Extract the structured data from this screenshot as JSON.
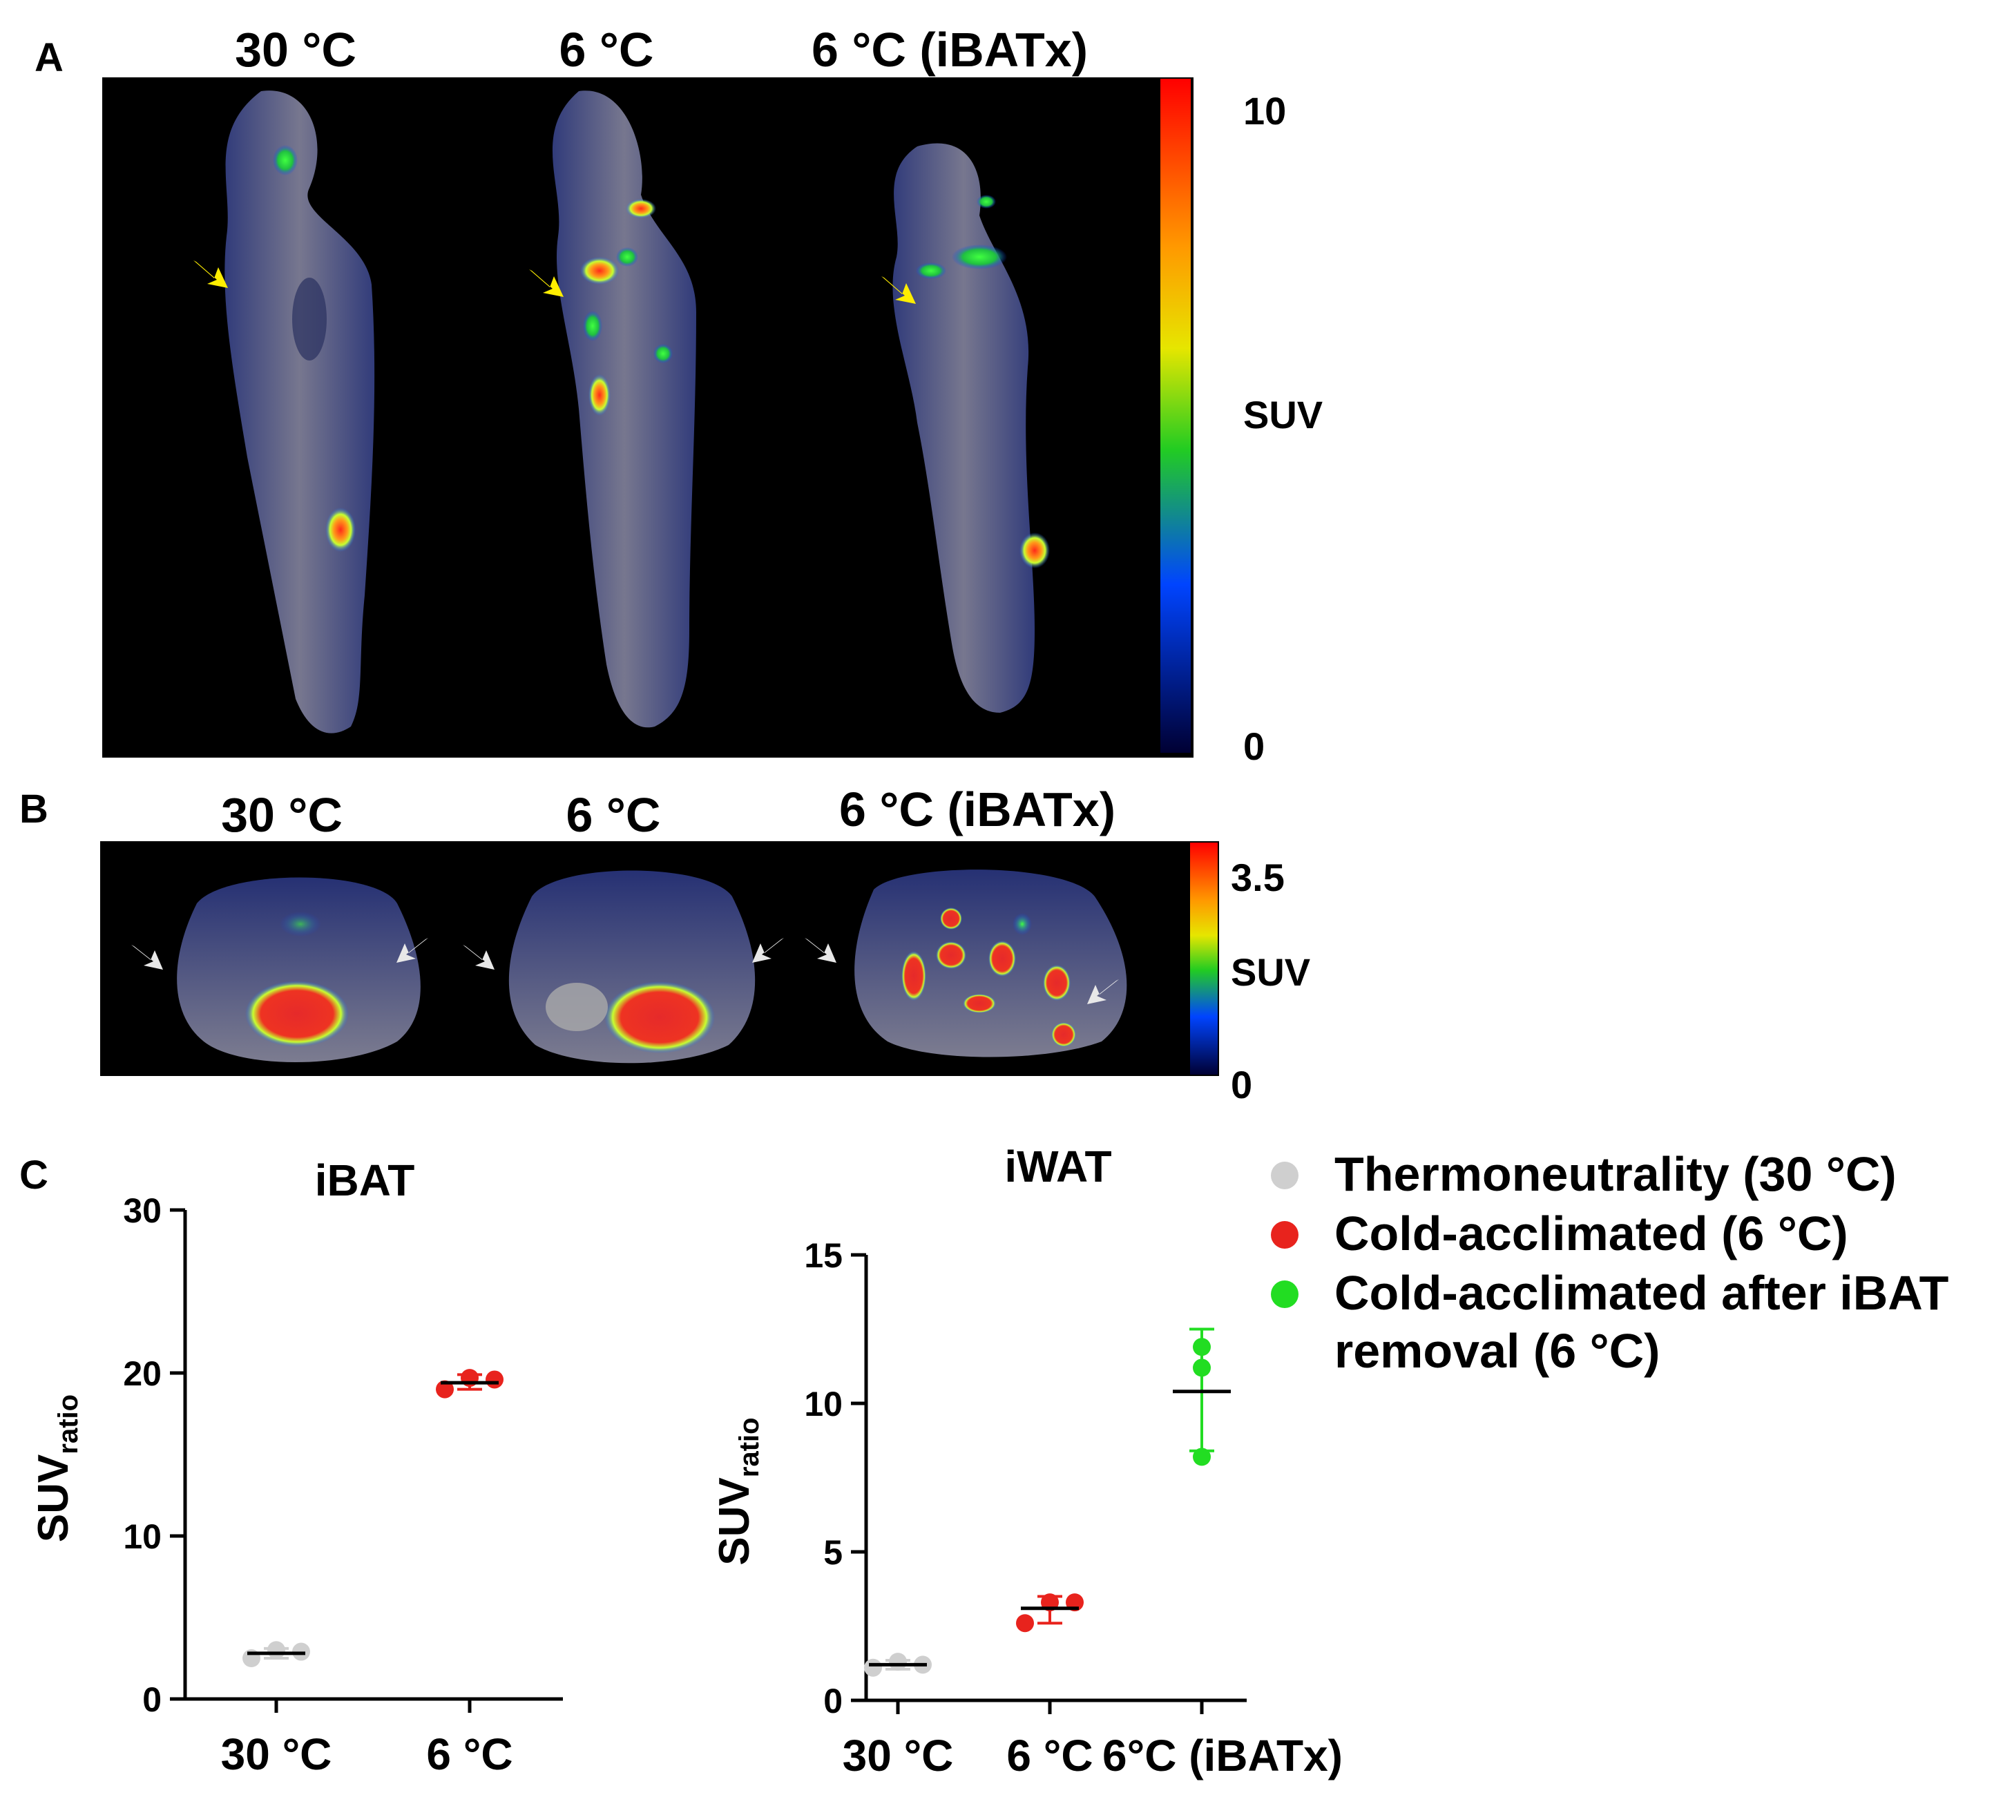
{
  "panel_a": {
    "letter": "A",
    "columns": [
      "30 °C",
      "6 °C",
      "6 °C (iBATx)"
    ],
    "colorbar": {
      "max": "10",
      "unit": "SUV",
      "min": "0"
    }
  },
  "panel_b": {
    "letter": "B",
    "columns": [
      "30 °C",
      "6 °C",
      "6 °C  (iBATx)"
    ],
    "colorbar": {
      "max": "3.5",
      "unit": "SUV",
      "min": "0"
    }
  },
  "panel_c": {
    "letter": "C",
    "legend": [
      {
        "label": "Thermoneutrality (30 °C)",
        "color": "#cfcfcf"
      },
      {
        "label": "Cold-acclimated (6 °C)",
        "color": "#e8231d"
      },
      {
        "label": "Cold-acclimated after iBAT removal (6 °C)",
        "color": "#22dd22"
      }
    ]
  },
  "colors": {
    "thermo": "#cfcfcf",
    "cold": "#e8231d",
    "iBATx": "#22dd22",
    "image_bg": "#000000"
  },
  "chart_data": [
    {
      "type": "scatter",
      "title": "iBAT",
      "ylabel_main": "SUV",
      "ylabel_sub": "ratio",
      "categories": [
        "30 °C",
        "6 °C"
      ],
      "yticks": [
        "0",
        "10",
        "20",
        "30"
      ],
      "ylim": [
        0,
        30
      ],
      "groups": [
        {
          "category": "30 °C",
          "color": "#cfcfcf",
          "points": [
            2.5,
            3.0,
            2.9
          ],
          "mean": 2.8,
          "error": [
            2.5,
            3.1
          ]
        },
        {
          "category": "6 °C",
          "color": "#e8231d",
          "points": [
            19.0,
            19.7,
            19.6
          ],
          "mean": 19.4,
          "error": [
            19.0,
            19.9
          ]
        }
      ]
    },
    {
      "type": "scatter",
      "title": "iWAT",
      "ylabel_main": "SUV",
      "ylabel_sub": "ratio",
      "categories": [
        "30 °C",
        "6 °C",
        "6°C (iBATx)"
      ],
      "yticks": [
        "0",
        "5",
        "10",
        "15"
      ],
      "ylim": [
        0,
        15
      ],
      "groups": [
        {
          "category": "30 °C",
          "color": "#cfcfcf",
          "points": [
            1.1,
            1.3,
            1.2
          ],
          "mean": 1.2,
          "error": [
            1.05,
            1.35
          ]
        },
        {
          "category": "6 °C",
          "color": "#e8231d",
          "points": [
            2.6,
            3.3,
            3.3
          ],
          "mean": 3.1,
          "error": [
            2.6,
            3.5
          ]
        },
        {
          "category": "6°C (iBATx)",
          "color": "#22dd22",
          "points": [
            8.2,
            11.2,
            11.9
          ],
          "mean": 10.4,
          "error": [
            8.4,
            12.5
          ]
        }
      ]
    }
  ]
}
